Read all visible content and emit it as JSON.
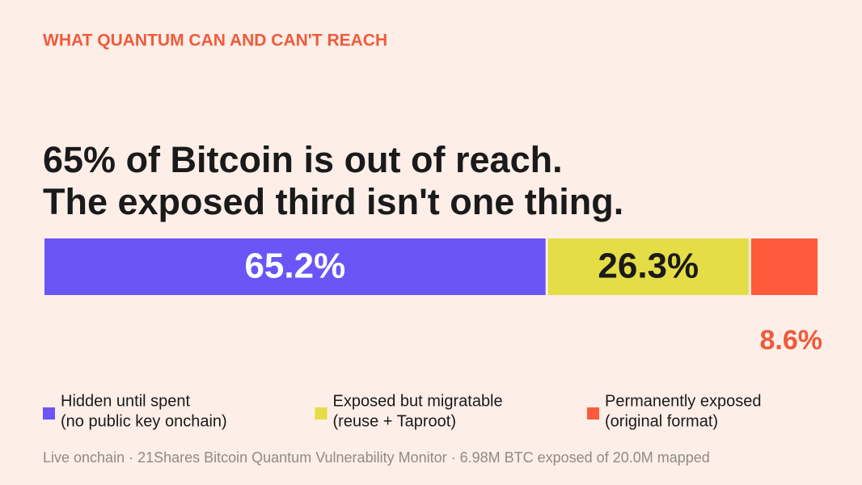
{
  "chart_data": {
    "type": "stacked-bar",
    "kicker": "WHAT QUANTUM CAN AND CAN'T REACH",
    "title": [
      "65% of Bitcoin is out of reach.",
      "The exposed third isn't one thing."
    ],
    "series": [
      {
        "name": "Hidden until spent",
        "description": "(no public key onchain)",
        "color": "#6b55f7",
        "label_color": "#ffffff",
        "values": [
          65.2
        ],
        "value_labels": [
          "65.2%"
        ]
      },
      {
        "name": "Exposed but migratable",
        "description": "(reuse + Taproot)",
        "color": "#e4dd45",
        "label_color": "#1a1a1a",
        "values": [
          26.3
        ],
        "value_labels": [
          "26.3%"
        ]
      },
      {
        "name": "Permanently exposed",
        "description": "(original format)",
        "color": "#ff5a3c",
        "label_color": "#f05a3a",
        "values": [
          8.6
        ],
        "value_labels": [
          "8.6%"
        ]
      }
    ],
    "footer": "Live onchain · 21Shares Bitcoin Quantum Vulnerability Monitor · 6.98M BTC exposed of 20.0M mapped"
  }
}
